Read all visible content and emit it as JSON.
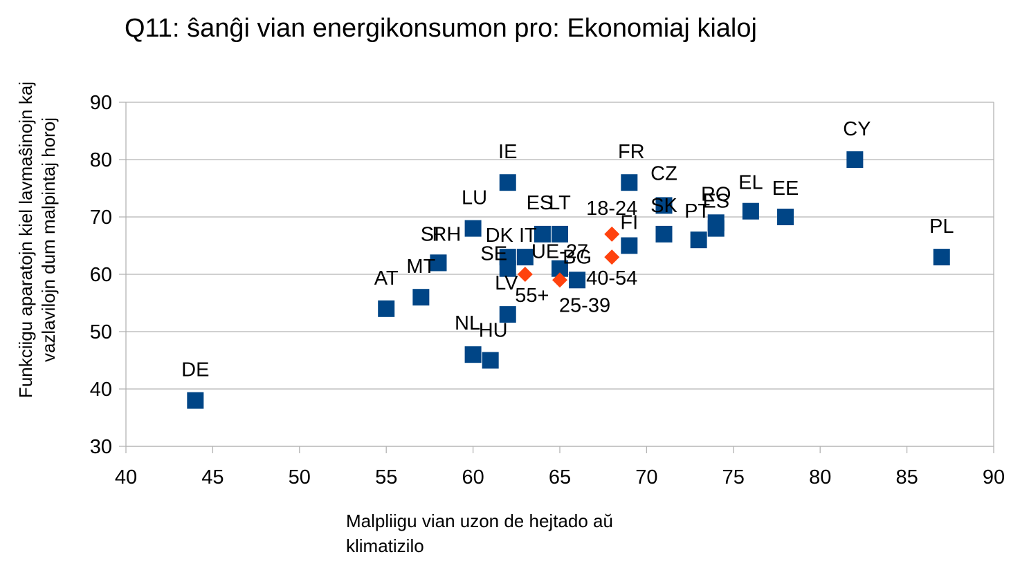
{
  "chart_data": {
    "type": "scatter",
    "title": "Q11: ŝanĝi vian energikonsumon pro: Ekonomiaj kialoj",
    "xlabel": "Malpliigu vian uzon de hejtado aŭ klimatizilo",
    "ylabel": "Funkciigu aparatojn kiel lavmaŝinojn kaj vazlavilojn dum malpintaj horoj",
    "xlim": [
      40,
      90
    ],
    "ylim": [
      30,
      90
    ],
    "x_ticks": [
      "40",
      "45",
      "50",
      "55",
      "60",
      "65",
      "70",
      "75",
      "80",
      "85",
      "90"
    ],
    "y_ticks": [
      "30",
      "40",
      "50",
      "60",
      "70",
      "80",
      "90"
    ],
    "grid": "horizontal",
    "colors": {
      "country": "#004586",
      "group": "#ff420e",
      "grid": "#b3b3b3"
    },
    "series": [
      {
        "marker": "square",
        "points": [
          {
            "label": "DE",
            "x": 44,
            "y": 38
          },
          {
            "label": "AT",
            "x": 55,
            "y": 54
          },
          {
            "label": "MT",
            "x": 57,
            "y": 56
          },
          {
            "label": "SI",
            "x": 58,
            "y": 62
          },
          {
            "label": "RH",
            "x": 58,
            "y": 62
          },
          {
            "label": "LU",
            "x": 60,
            "y": 68
          },
          {
            "label": "NL",
            "x": 60,
            "y": 46
          },
          {
            "label": "HU",
            "x": 61,
            "y": 45
          },
          {
            "label": "IE",
            "x": 62,
            "y": 76
          },
          {
            "label": "LV",
            "x": 62,
            "y": 53
          },
          {
            "label": "SE",
            "x": 62,
            "y": 61
          },
          {
            "label": "DK",
            "x": 62,
            "y": 63
          },
          {
            "label": "IT",
            "x": 63,
            "y": 63
          },
          {
            "label": "ES",
            "x": 64,
            "y": 67
          },
          {
            "label": "LT",
            "x": 65,
            "y": 67
          },
          {
            "label": "UE-27",
            "x": 65,
            "y": 61
          },
          {
            "label": "BG",
            "x": 66,
            "y": 59
          },
          {
            "label": "FR",
            "x": 69,
            "y": 76
          },
          {
            "label": "FI",
            "x": 69,
            "y": 65
          },
          {
            "label": "CZ",
            "x": 71,
            "y": 72
          },
          {
            "label": "SK",
            "x": 71,
            "y": 67
          },
          {
            "label": "PT",
            "x": 73,
            "y": 66
          },
          {
            "label": "RO",
            "x": 74,
            "y": 69
          },
          {
            "label": "ES",
            "x": 74,
            "y": 68
          },
          {
            "label": "EL",
            "x": 76,
            "y": 71
          },
          {
            "label": "EE",
            "x": 78,
            "y": 70
          },
          {
            "label": "CY",
            "x": 82,
            "y": 80
          },
          {
            "label": "PL",
            "x": 87,
            "y": 63
          }
        ]
      },
      {
        "marker": "diamond",
        "points": [
          {
            "label": "18-24",
            "x": 68,
            "y": 67
          },
          {
            "label": "40-54",
            "x": 68,
            "y": 63
          },
          {
            "label": "25-39",
            "x": 65,
            "y": 59
          },
          {
            "label": "55+",
            "x": 63,
            "y": 60
          }
        ]
      }
    ]
  }
}
